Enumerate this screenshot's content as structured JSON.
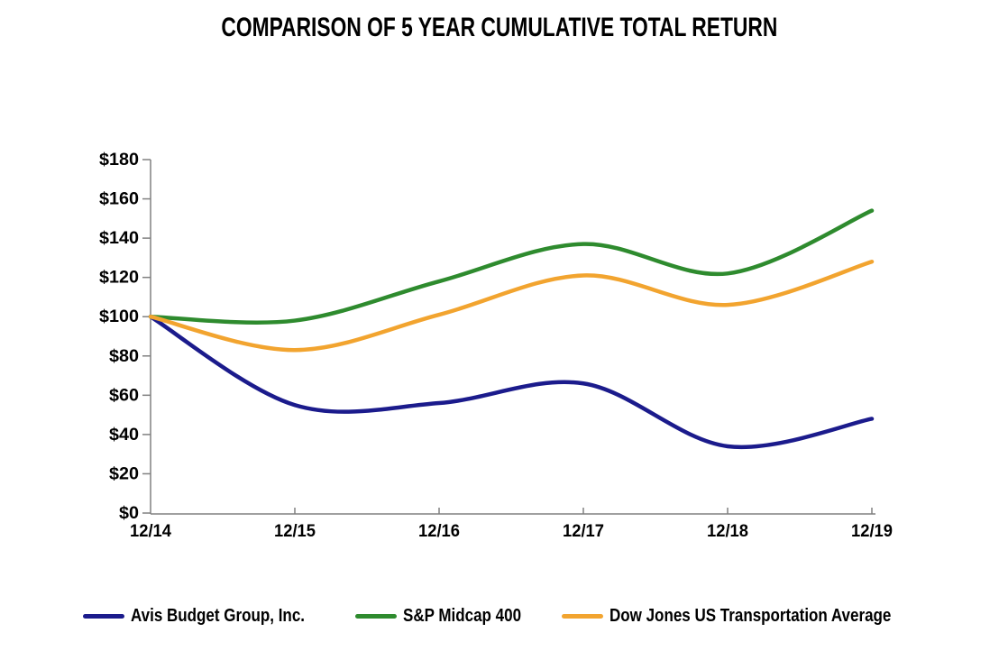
{
  "title": "COMPARISON OF 5 YEAR CUMULATIVE TOTAL RETURN",
  "chart_data": {
    "type": "line",
    "smoothed": true,
    "x_labels": [
      "12/14",
      "12/15",
      "12/16",
      "12/17",
      "12/18",
      "12/19"
    ],
    "y_ticks": [
      "$180",
      "$160",
      "$140",
      "$120",
      "$100",
      "$80",
      "$60",
      "$40",
      "$20",
      "$0"
    ],
    "ylim": [
      0,
      180
    ],
    "y_tick_step": 20,
    "grid": false,
    "legend_position": "bottom",
    "axis_color": "#808080",
    "tick_label_color": "#000000",
    "series": [
      {
        "name": "Avis Budget Group, Inc.",
        "color": "#1b1b8c",
        "values": [
          100,
          55,
          56,
          66,
          34,
          48
        ]
      },
      {
        "name": "S&P Midcap 400",
        "color": "#2e8b2e",
        "values": [
          100,
          98,
          118,
          137,
          122,
          154
        ]
      },
      {
        "name": "Dow Jones US Transportation Average",
        "color": "#f2a42f",
        "values": [
          100,
          83,
          101,
          121,
          106,
          128
        ]
      }
    ]
  }
}
